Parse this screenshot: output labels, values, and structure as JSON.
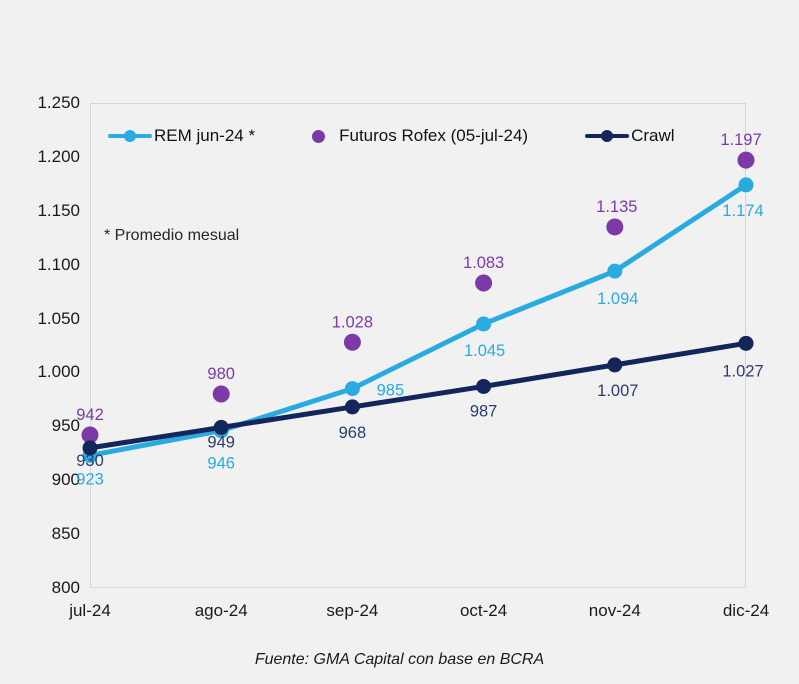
{
  "chart_data": {
    "type": "line",
    "title": "",
    "categories": [
      "jul-24",
      "ago-24",
      "sep-24",
      "oct-24",
      "nov-24",
      "dic-24"
    ],
    "series": [
      {
        "name": "REM jun-24 *",
        "type": "line",
        "color": "#29abe2",
        "label_color": "#29abe2",
        "values": [
          923,
          946,
          985,
          1045,
          1094,
          1174
        ],
        "labels": [
          "923",
          "946",
          "985",
          "1.045",
          "1.094",
          "1.174"
        ]
      },
      {
        "name": "Futuros Rofex (05-jul-24)",
        "type": "scatter",
        "color": "#7c3aa6",
        "label_color": "#7c3aa6",
        "values": [
          942,
          980,
          1028,
          1083,
          1135,
          1197
        ],
        "labels": [
          "942",
          "980",
          "1.028",
          "1.083",
          "1.135",
          "1.197"
        ]
      },
      {
        "name": "Crawl",
        "type": "line",
        "color": "#13265c",
        "label_color": "#2d3c6f",
        "values": [
          930,
          949,
          968,
          987,
          1007,
          1027
        ],
        "labels": [
          "930",
          "949",
          "968",
          "987",
          "1.007",
          "1.027"
        ]
      }
    ],
    "y_axis": {
      "min": 800,
      "max": 1250,
      "step": 50,
      "tick_labels": [
        "1.250",
        "1.200",
        "1.150",
        "1.100",
        "1.050",
        "1.000",
        "950",
        "900",
        "850",
        "800"
      ]
    },
    "annotation": "* Promedio mesual",
    "legend_position": "top-inside",
    "grid": false
  },
  "footer": {
    "source": "Fuente: GMA Capital con base en BCRA"
  }
}
